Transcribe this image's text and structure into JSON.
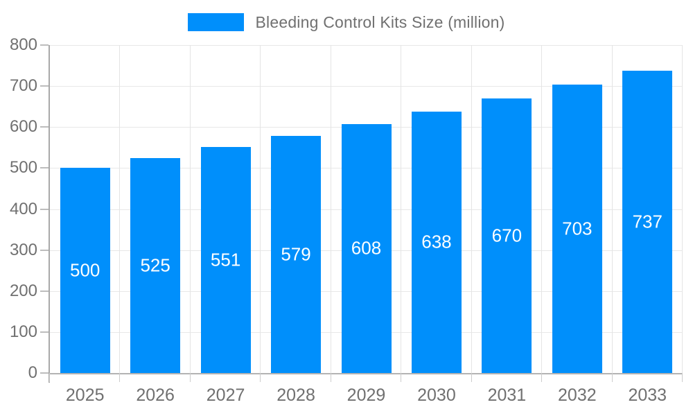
{
  "legend": {
    "label": "Bleeding Control Kits Size (million)"
  },
  "chart_data": {
    "type": "bar",
    "title": "",
    "categories": [
      "2025",
      "2026",
      "2027",
      "2028",
      "2029",
      "2030",
      "2031",
      "2032",
      "2033"
    ],
    "series": [
      {
        "name": "Bleeding Control Kits Size (million)",
        "values": [
          500,
          525,
          551,
          579,
          608,
          638,
          670,
          703,
          737
        ]
      }
    ],
    "bar_labels": [
      "500",
      "525",
      "551",
      "579",
      "608",
      "638",
      "670",
      "703",
      "737"
    ],
    "xlabel": "",
    "ylabel": "",
    "ylim": [
      0,
      800
    ],
    "ytick_step": 100,
    "yticks": [
      "0",
      "100",
      "200",
      "300",
      "400",
      "500",
      "600",
      "700",
      "800"
    ],
    "grid": true,
    "legend_position": "top"
  },
  "colors": {
    "bar": "#008FFB",
    "axis_label": "#707070",
    "grid_line": "#e7e7e7",
    "axis_line": "#a8a8a8",
    "tick": "#cccccc",
    "value_label": "#ffffff",
    "background": "#ffffff"
  }
}
